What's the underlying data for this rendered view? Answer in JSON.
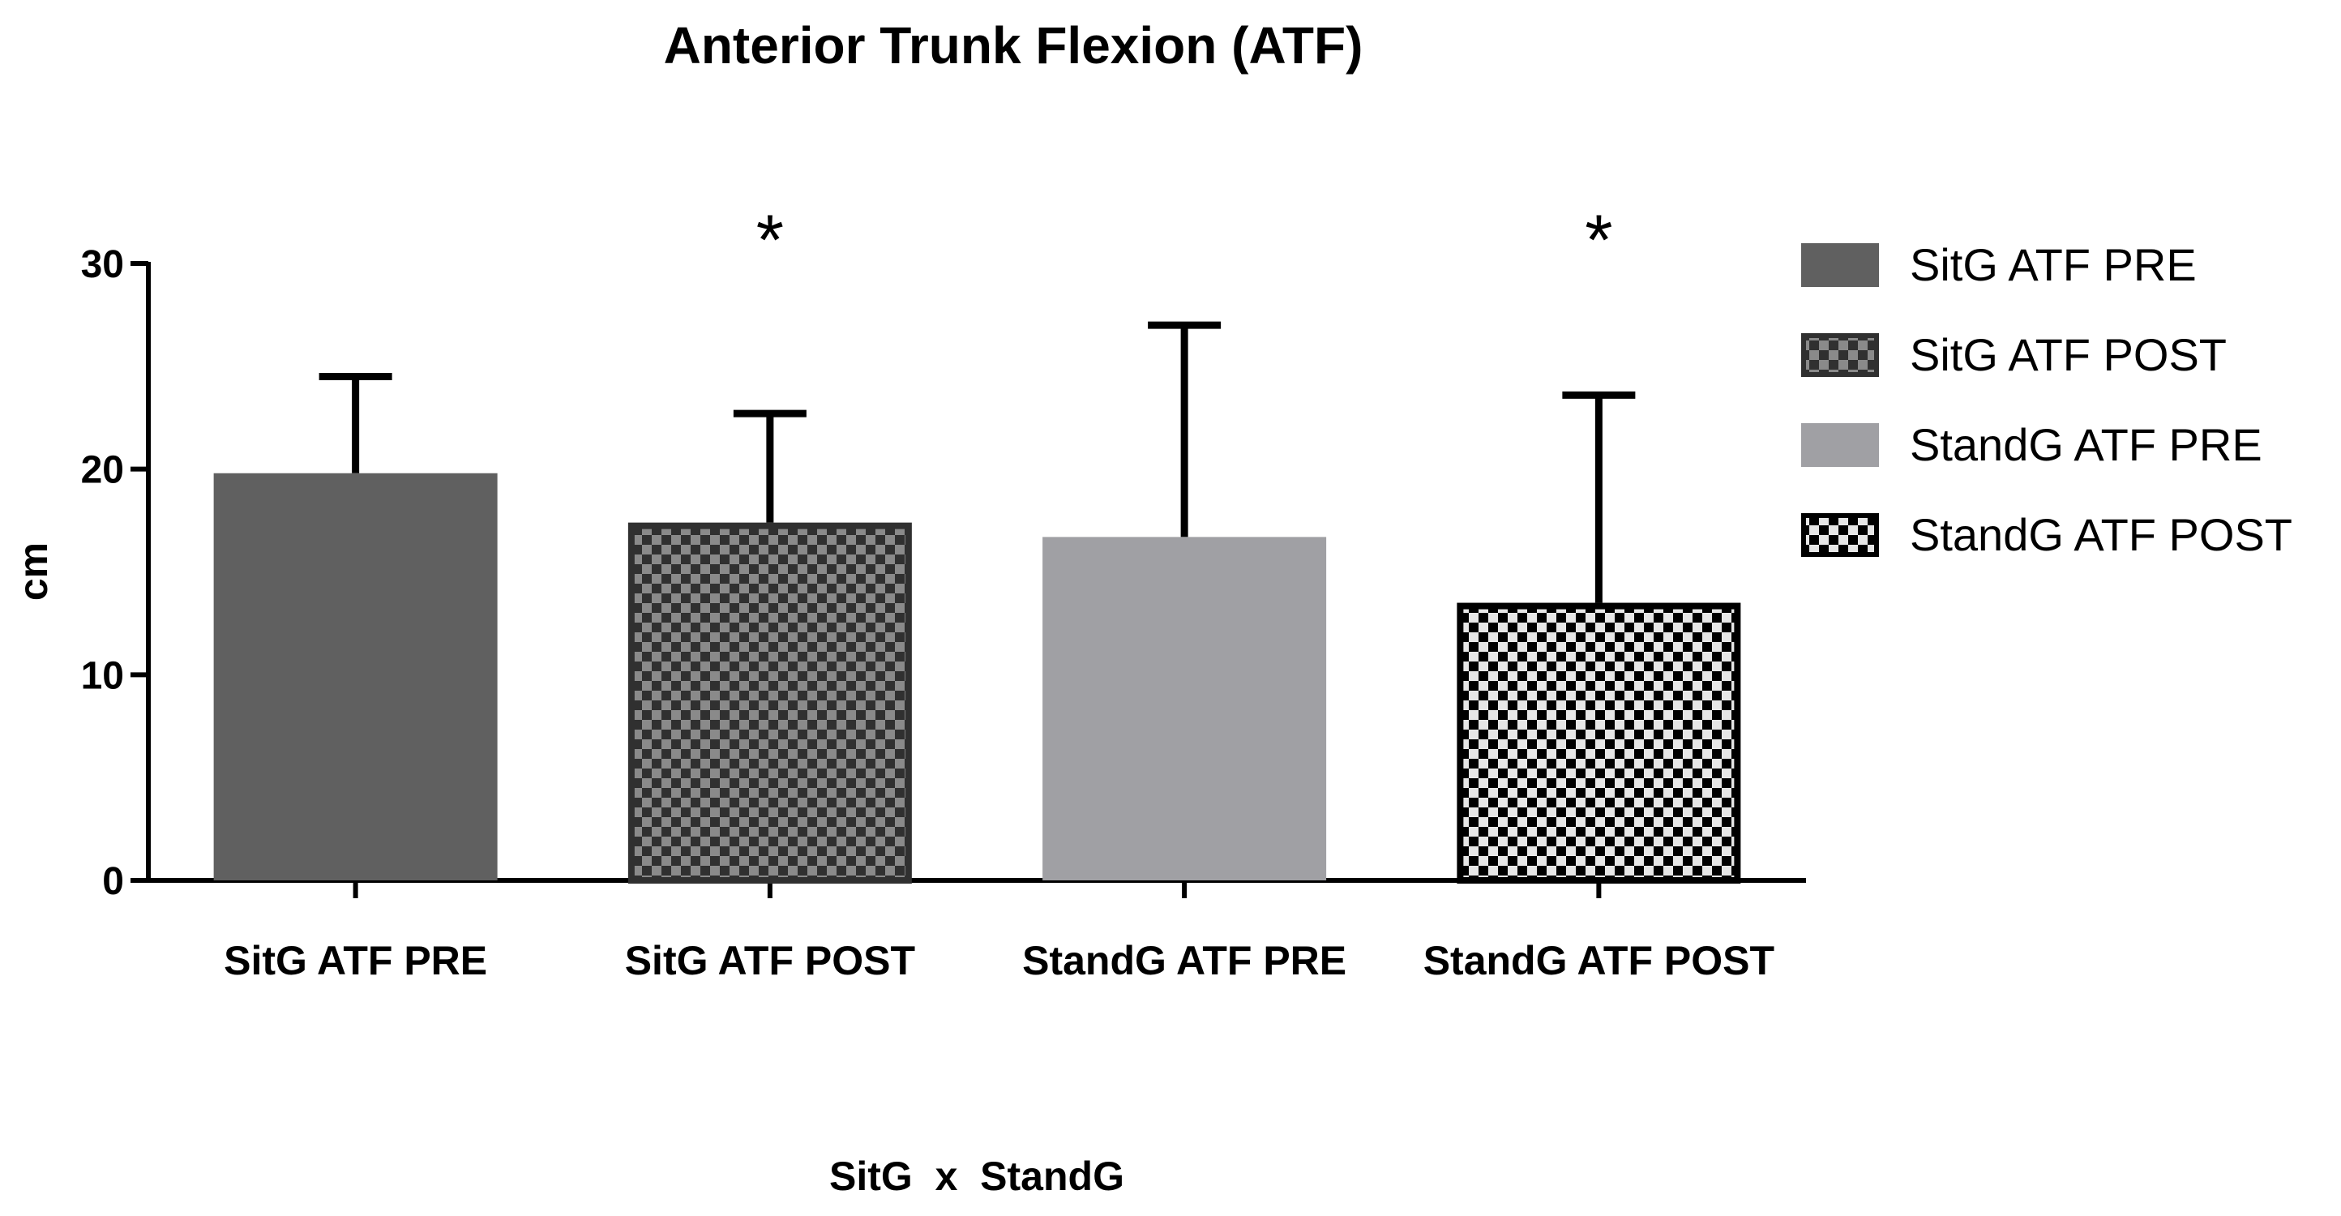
{
  "chart_data": {
    "type": "bar",
    "title": "Anterior Trunk Flexion (ATF)",
    "xlabel": "SitG  x  StandG",
    "ylabel": "cm",
    "ylim": [
      0,
      30
    ],
    "yticks": [
      0,
      10,
      20,
      30
    ],
    "grid": false,
    "legend_position": "right",
    "categories": [
      "SitG ATF PRE",
      "SitG ATF POST",
      "StandG ATF PRE",
      "StandG ATF POST"
    ],
    "values": [
      19.8,
      17.4,
      16.7,
      13.5
    ],
    "error_upper": [
      24.5,
      22.7,
      27.0,
      23.6
    ],
    "significance": [
      "",
      "*",
      "",
      "*"
    ],
    "fills": [
      {
        "pattern": "solid",
        "color": "#606060"
      },
      {
        "pattern": "checker",
        "dark": "#303030",
        "light": "#8a8a8a",
        "border": "#303030"
      },
      {
        "pattern": "solid",
        "color": "#a0a0a4"
      },
      {
        "pattern": "checker",
        "dark": "#000000",
        "light": "#e6e6e6",
        "border": "#000000"
      }
    ],
    "legend": [
      "SitG ATF PRE",
      "SitG ATF POST",
      "StandG ATF PRE",
      "StandG ATF POST"
    ]
  }
}
